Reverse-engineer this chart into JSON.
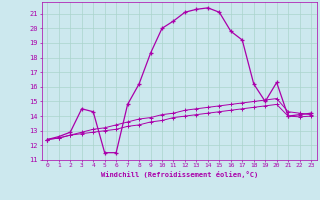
{
  "xlabel": "Windchill (Refroidissement éolien,°C)",
  "bg_color": "#cce8ee",
  "grid_color": "#aad4cc",
  "line_color": "#aa00aa",
  "xlim": [
    -0.5,
    23.5
  ],
  "ylim": [
    11,
    21.8
  ],
  "yticks": [
    11,
    12,
    13,
    14,
    15,
    16,
    17,
    18,
    19,
    20,
    21
  ],
  "xticks": [
    0,
    1,
    2,
    3,
    4,
    5,
    6,
    7,
    8,
    9,
    10,
    11,
    12,
    13,
    14,
    15,
    16,
    17,
    18,
    19,
    20,
    21,
    22,
    23
  ],
  "line1_x": [
    0,
    1,
    2,
    3,
    4,
    5,
    6,
    7,
    8,
    9,
    10,
    11,
    12,
    13,
    14,
    15,
    16,
    17,
    18,
    19,
    20,
    21,
    22,
    23
  ],
  "line1_y": [
    12.4,
    12.6,
    12.9,
    14.5,
    14.3,
    11.5,
    11.5,
    14.8,
    16.2,
    18.3,
    20.0,
    20.5,
    21.1,
    21.3,
    21.4,
    21.1,
    19.8,
    19.2,
    16.2,
    15.0,
    16.3,
    14.0,
    14.1,
    14.2
  ],
  "line2_x": [
    0,
    1,
    2,
    3,
    4,
    5,
    6,
    7,
    8,
    9,
    10,
    11,
    12,
    13,
    14,
    15,
    16,
    17,
    18,
    19,
    20,
    21,
    22,
    23
  ],
  "line2_y": [
    12.4,
    12.5,
    12.7,
    12.8,
    12.9,
    13.0,
    13.1,
    13.3,
    13.4,
    13.6,
    13.7,
    13.9,
    14.0,
    14.1,
    14.2,
    14.3,
    14.4,
    14.5,
    14.6,
    14.7,
    14.8,
    14.0,
    13.95,
    14.0
  ],
  "line3_x": [
    0,
    1,
    2,
    3,
    4,
    5,
    6,
    7,
    8,
    9,
    10,
    11,
    12,
    13,
    14,
    15,
    16,
    17,
    18,
    19,
    20,
    21,
    22,
    23
  ],
  "line3_y": [
    12.4,
    12.5,
    12.7,
    12.9,
    13.1,
    13.2,
    13.4,
    13.6,
    13.8,
    13.9,
    14.1,
    14.2,
    14.4,
    14.5,
    14.6,
    14.7,
    14.8,
    14.9,
    15.0,
    15.1,
    15.2,
    14.3,
    14.2,
    14.1
  ]
}
